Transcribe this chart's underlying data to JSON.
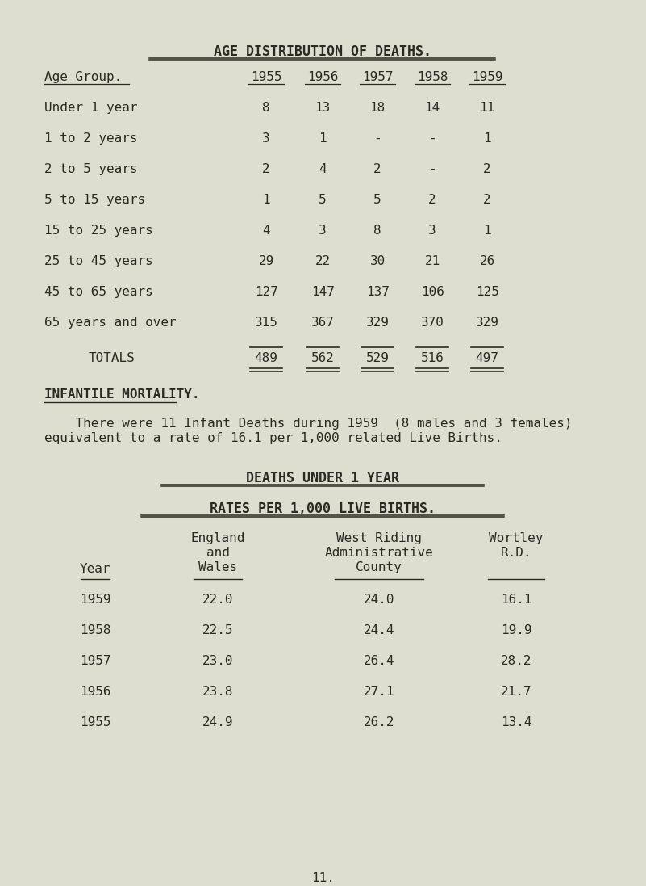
{
  "bg_color": "#deded0",
  "title1": "AGE DISTRIBUTION OF DEATHS.",
  "table1_col_labels": [
    "Age Group.",
    "1955",
    "1956",
    "1957",
    "1958",
    "1959"
  ],
  "table1_rows": [
    [
      "Under 1 year",
      "8",
      "13",
      "18",
      "14",
      "11"
    ],
    [
      "1 to 2 years",
      "3",
      "1",
      "-",
      "-",
      "1"
    ],
    [
      "2 to 5 years",
      "2",
      "4",
      "2",
      "-",
      "2"
    ],
    [
      "5 to 15 years",
      "1",
      "5",
      "5",
      "2",
      "2"
    ],
    [
      "15 to 25 years",
      "4",
      "3",
      "8",
      "3",
      "1"
    ],
    [
      "25 to 45 years",
      "29",
      "22",
      "30",
      "21",
      "26"
    ],
    [
      "45 to 65 years",
      "127",
      "147",
      "137",
      "106",
      "125"
    ],
    [
      "65 years and over",
      "315",
      "367",
      "329",
      "370",
      "329"
    ]
  ],
  "totals_label": "TOTALS",
  "totals_values": [
    "489",
    "562",
    "529",
    "516",
    "497"
  ],
  "section2_title": "INFANTILE MORTALITY.",
  "section2_line1": "    There were 11 Infant Deaths during 1959  (8 males and 3 females)",
  "section2_line2": "equivalent to a rate of 16.1 per 1,000 related Live Births.",
  "title3": "DEATHS UNDER 1 YEAR",
  "subtitle3": "RATES PER 1,000 LIVE BIRTHS.",
  "t2_year_col": "Year",
  "t2_col1_lines": [
    "England",
    "and",
    "Wales"
  ],
  "t2_col2_lines": [
    "West Riding",
    "Administrative",
    "County"
  ],
  "t2_col3_lines": [
    "Wortley",
    "R.D."
  ],
  "table2_rows": [
    [
      "1959",
      "22.0",
      "24.0",
      "16.1"
    ],
    [
      "1958",
      "22.5",
      "24.4",
      "19.9"
    ],
    [
      "1957",
      "23.0",
      "26.4",
      "28.2"
    ],
    [
      "1956",
      "23.8",
      "27.1",
      "21.7"
    ],
    [
      "1955",
      "24.9",
      "26.2",
      "13.4"
    ]
  ],
  "page_number": "11.",
  "text_color": "#2a2a22",
  "font_size": 11.5
}
